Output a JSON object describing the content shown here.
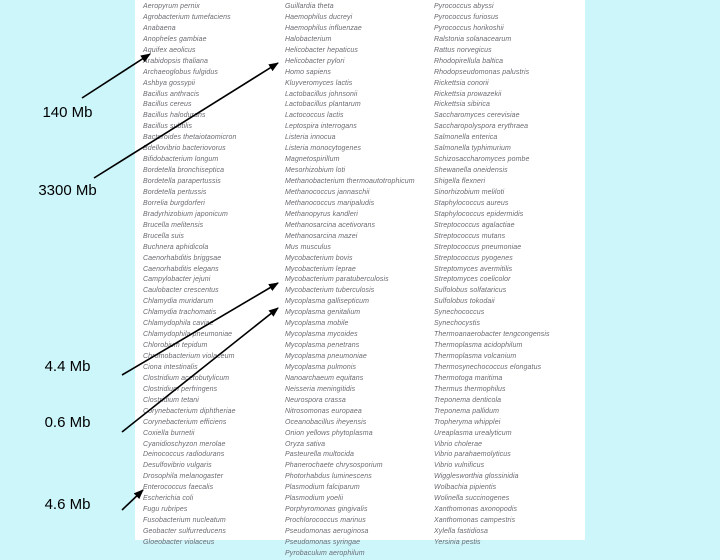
{
  "labels": {
    "l140": "140 Mb",
    "l3300": "3300 Mb",
    "l44": "4.4 Mb",
    "l06": "0.6 Mb",
    "l46": "4.6 Mb"
  },
  "columns": [
    [
      "Aeropyrum pernix",
      "Agrobacterium tumefaciens",
      "Anabaena",
      "Anopheles gambiae",
      "Aquifex aeolicus",
      "Arabidopsis thaliana",
      "Archaeoglobus fulgidus",
      "Ashbya gossypii",
      "Bacillus anthracis",
      "Bacillus cereus",
      "Bacillus halodurans",
      "Bacillus subtilis",
      "Bacteroides thetaiotaomicron",
      "Bdellovibrio bacteriovorus",
      "Bifidobacterium longum",
      "Bordetella bronchiseptica",
      "Bordetella parapertussis",
      "Bordetella pertussis",
      "Borrelia burgdorferi",
      "Bradyrhizobium japonicum",
      "Brucella melitensis",
      "Brucella suis",
      "Buchnera aphidicola",
      "Caenorhabditis briggsae",
      "Caenorhabditis elegans",
      "Campylobacter jejuni",
      "Caulobacter crescentus",
      "Chlamydia muridarum",
      "Chlamydia trachomatis",
      "Chlamydophila caviae",
      "Chlamydophila pneumoniae",
      "Chlorobium tepidum",
      "Chromobacterium violaceum",
      "Ciona intestinalis",
      "Clostridium acetobutylicum",
      "Clostridium perfringens",
      "Clostridium tetani",
      "Corynebacterium diphtheriae",
      "Corynebacterium efficiens",
      "Coxiella burnetii",
      "Cyanidioschyzon merolae",
      "Deinococcus radiodurans",
      "Desulfovibrio vulgaris",
      "Drosophila melanogaster",
      "Enterococcus faecalis",
      "Escherichia coli",
      "Fugu rubripes",
      "Fusobacterium nucleatum",
      "Geobacter sulfurreducens",
      "Gloeobacter violaceus"
    ],
    [
      "Guillardia theta",
      "Haemophilus ducreyi",
      "Haemophilus influenzae",
      "Halobacterium",
      "Helicobacter hepaticus",
      "Helicobacter pylori",
      "Homo sapiens",
      "Kluyveromyces lactis",
      "Lactobacillus johnsonii",
      "Lactobacillus plantarum",
      "Lactococcus lactis",
      "Leptospira interrogans",
      "Listeria innocua",
      "Listeria monocytogenes",
      "Magnetospirillum",
      "Mesorhizobium loti",
      "Methanobacterium thermoautotrophicum",
      "Methanococcus jannaschii",
      "Methanococcus maripaludis",
      "Methanopyrus kandleri",
      "Methanosarcina acetivorans",
      "Methanosarcina mazei",
      "Mus musculus",
      "Mycobacterium bovis",
      "Mycobacterium leprae",
      "Mycobacterium paratuberculosis",
      "Mycobacterium tuberculosis",
      "Mycoplasma gallisepticum",
      "Mycoplasma genitalium",
      "Mycoplasma mobile",
      "Mycoplasma mycoides",
      "Mycoplasma penetrans",
      "Mycoplasma pneumoniae",
      "Mycoplasma pulmonis",
      "Nanoarchaeum equitans",
      "Neisseria meningitidis",
      "Neurospora crassa",
      "Nitrosomonas europaea",
      "Oceanobacillus iheyensis",
      "Onion yellows phytoplasma",
      "Oryza sativa",
      "Pasteurella multocida",
      "Phanerochaete chrysosporium",
      "Photorhabdus luminescens",
      "Plasmodium falciparum",
      "Plasmodium yoelii",
      "Porphyromonas gingivalis",
      "Prochlorococcus marinus",
      "Pseudomonas aeruginosa",
      "Pseudomonas syringae",
      "Pyrobaculum aerophilum"
    ],
    [
      "Pyrococcus abyssi",
      "Pyrococcus furiosus",
      "Pyrococcus horikoshii",
      "Ralstonia solanacearum",
      "Rattus norvegicus",
      "Rhodopirellula baltica",
      "Rhodopseudomonas palustris",
      "Rickettsia conorii",
      "Rickettsia prowazekii",
      "Rickettsia sibirica",
      "Saccharomyces cerevisiae",
      "Saccharopolyspora erythraea",
      "Salmonella enterica",
      "Salmonella typhimurium",
      "Schizosaccharomyces pombe",
      "Shewanella oneidensis",
      "Shigella flexneri",
      "Sinorhizobium meliloti",
      "Staphylococcus aureus",
      "Staphylococcus epidermidis",
      "Streptococcus agalactiae",
      "Streptococcus mutans",
      "Streptococcus pneumoniae",
      "Streptococcus pyogenes",
      "Streptomyces avermitilis",
      "Streptomyces coelicolor",
      "Sulfolobus solfataricus",
      "Sulfolobus tokodaii",
      "Synechococcus",
      "Synechocystis",
      "Thermoanaerobacter tengcongensis",
      "Thermoplasma acidophilum",
      "Thermoplasma volcanium",
      "Thermosynechococcus elongatus",
      "Thermotoga maritima",
      "Thermus thermophilus",
      "Treponema denticola",
      "Treponema pallidum",
      "Tropheryma whipplei",
      "Ureaplasma urealyticum",
      "Vibrio cholerae",
      "Vibrio parahaemolyticus",
      "Vibrio vulnificus",
      "Wigglesworthia glossinidia",
      "Wolbachia pipientis",
      "Wolinella succinogenes",
      "Xanthomonas axonopodis",
      "Xanthomonas campestris",
      "Xylella fastidiosa",
      "Yersinia pestis"
    ]
  ]
}
